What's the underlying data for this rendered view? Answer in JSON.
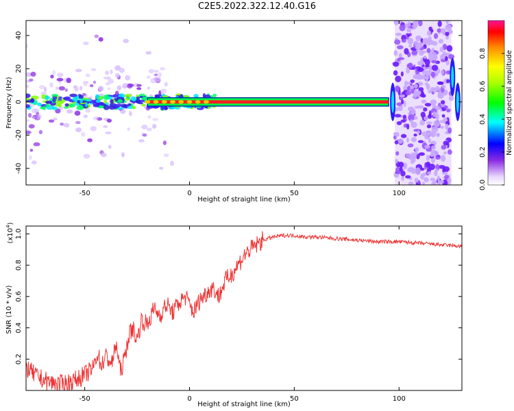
{
  "title": "C2E5.2022.322.12.40.G16",
  "chart_data": [
    {
      "type": "heatmap",
      "xlabel": "Height of straight line (km)",
      "ylabel": "Frequency (Hz)",
      "xlim": [
        -78,
        130
      ],
      "ylim": [
        -50,
        49
      ],
      "xticks": [
        -50,
        0,
        50,
        100
      ],
      "yticks": [
        -40,
        -20,
        0,
        20,
        40
      ],
      "colorbar": {
        "label": "Normalized spectral amplitude",
        "range": [
          0,
          1
        ],
        "ticks": [
          "0.0",
          "0.2",
          "0.4",
          "0.6",
          "0.8"
        ]
      },
      "ridge": {
        "x_start": -78,
        "x_end": 95,
        "freq_hz": 0,
        "band_hz": 2.5
      },
      "noise_region": {
        "x_start": 98,
        "x_end": 125
      }
    },
    {
      "type": "line",
      "xlabel": "Height of straight line (km)",
      "ylabel": "SNR (10 * v/v)",
      "y_multiplier": "(x10^4)",
      "y_multiplier_base": "(x10",
      "y_multiplier_exp": "4",
      "xlim": [
        -78,
        130
      ],
      "ylim": [
        0,
        1.05
      ],
      "xticks": [
        -50,
        0,
        50,
        100
      ],
      "yticks": [
        0.2,
        0.4,
        0.6,
        0.8,
        1.0
      ],
      "color": "#ee3333",
      "series": [
        {
          "x": [
            -78,
            -74,
            -70,
            -66,
            -62,
            -58,
            -54,
            -50,
            -46,
            -44,
            -42,
            -40,
            -37,
            -35,
            -33,
            -31,
            -29,
            -27,
            -25,
            -23,
            -20,
            -17,
            -14,
            -11,
            -8,
            -5,
            -2,
            2,
            5,
            8,
            11,
            14,
            17,
            20,
            23,
            26,
            29,
            32,
            35,
            40,
            45,
            50,
            55,
            60,
            70,
            80,
            90,
            100,
            110,
            120,
            130
          ],
          "values": [
            0.15,
            0.1,
            0.07,
            0.05,
            0.04,
            0.05,
            0.07,
            0.1,
            0.14,
            0.24,
            0.16,
            0.22,
            0.17,
            0.3,
            0.12,
            0.2,
            0.35,
            0.4,
            0.32,
            0.45,
            0.42,
            0.52,
            0.48,
            0.55,
            0.5,
            0.56,
            0.6,
            0.5,
            0.58,
            0.62,
            0.66,
            0.6,
            0.7,
            0.74,
            0.8,
            0.86,
            0.9,
            0.93,
            0.96,
            0.98,
            0.99,
            0.99,
            0.98,
            0.98,
            0.97,
            0.96,
            0.95,
            0.95,
            0.94,
            0.93,
            0.92
          ]
        }
      ]
    }
  ]
}
